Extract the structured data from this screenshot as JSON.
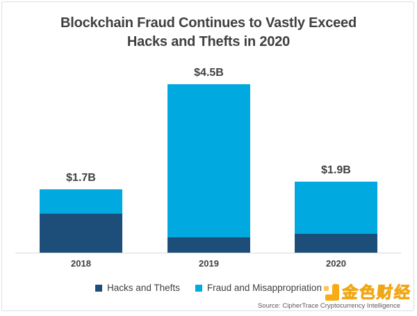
{
  "title": {
    "line1": "Blockchain Fraud Continues to Vastly Exceed",
    "line2": "Hacks and Thefts in 2020"
  },
  "chart_data": {
    "type": "bar",
    "stacked": true,
    "title": "Blockchain Fraud Continues to Vastly Exceed Hacks and Thefts in 2020",
    "categories": [
      "2018",
      "2019",
      "2020"
    ],
    "series": [
      {
        "name": "Hacks and Thefts",
        "color": "#1d4e79",
        "values": [
          1.05,
          0.4,
          0.5
        ]
      },
      {
        "name": "Fraud and Misappropriation",
        "color": "#00a9e0",
        "values": [
          0.65,
          4.1,
          1.4
        ]
      }
    ],
    "totals_labels": [
      "$1.7B",
      "$4.5B",
      "$1.9B"
    ],
    "unit": "USD billions",
    "ylim": [
      0,
      4.5
    ],
    "grid": false,
    "y_axis_shown": false,
    "legend_position": "bottom",
    "bar_label_position": "above"
  },
  "source": "Source: CipherTrace Cryptocurrency Intelligence",
  "watermark": {
    "text": "金色财经",
    "logo": "jinse-finance-logo",
    "color": "#f7a708"
  },
  "colors": {
    "hacks": "#1d4e79",
    "fraud": "#00a9e0",
    "text": "#3f3f3f",
    "axis": "#d9d9d9",
    "border": "#dedede"
  }
}
